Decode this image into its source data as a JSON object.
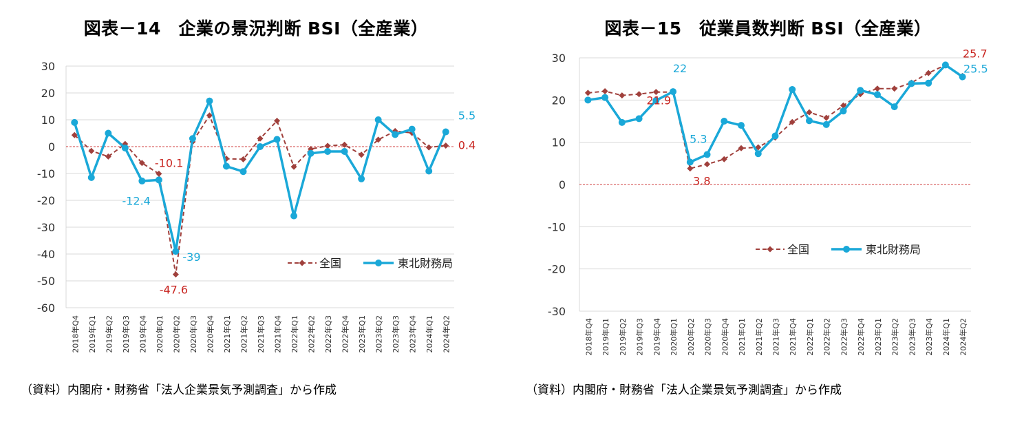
{
  "colors": {
    "zenkoku": "#a0403c",
    "tohoku": "#1aa8d8",
    "zero_line": "#d04040",
    "grid": "#d9d9d9"
  },
  "chart_data": [
    {
      "type": "line",
      "title": "図表－14　企業の景況判断 BSI（全産業）",
      "source": "（資料）内閣府・財務省「法人企業景気予測調査」から作成",
      "categories": [
        "2018年Q4",
        "2019年Q1",
        "2019年Q2",
        "2019年Q3",
        "2019年Q4",
        "2020年Q1",
        "2020年Q2",
        "2020年Q3",
        "2020年Q4",
        "2021年Q1",
        "2021年Q2",
        "2021年Q3",
        "2021年Q4",
        "2022年Q1",
        "2022年Q2",
        "2022年Q3",
        "2022年Q4",
        "2023年Q1",
        "2023年Q2",
        "2023年Q3",
        "2023年Q4",
        "2024年Q1",
        "2024年Q2"
      ],
      "ylim": [
        -60,
        30
      ],
      "yticks": [
        30,
        20,
        10,
        0,
        -10,
        -20,
        -30,
        -40,
        -50,
        -60
      ],
      "grid": true,
      "legend_position": "bottom-right",
      "series": [
        {
          "name": "全国",
          "style": "dashed-diamond",
          "values": [
            4.3,
            -1.6,
            -3.7,
            1.0,
            -6.1,
            -10.1,
            -47.6,
            1.8,
            11.6,
            -4.5,
            -4.7,
            3.0,
            9.6,
            -7.5,
            -0.9,
            0.3,
            0.7,
            -3.0,
            2.6,
            5.8,
            5.1,
            -0.3,
            0.4
          ]
        },
        {
          "name": "東北財務局",
          "style": "solid-circle",
          "values": [
            9.0,
            -11.5,
            5.0,
            -0.5,
            -12.8,
            -12.4,
            -39.0,
            3.0,
            17.0,
            -7.3,
            -9.3,
            0.0,
            2.7,
            -25.8,
            -2.5,
            -1.8,
            -1.8,
            -12.0,
            10.0,
            4.5,
            6.5,
            -9.1,
            5.5
          ]
        }
      ],
      "annotations": [
        {
          "text": "-10.1",
          "series": "全国",
          "index": 5
        },
        {
          "text": "-12.4",
          "series": "東北財務局",
          "index": 5
        },
        {
          "text": "-39",
          "series": "東北財務局",
          "index": 6
        },
        {
          "text": "-47.6",
          "series": "全国",
          "index": 6
        },
        {
          "text": "5.5",
          "series": "東北財務局",
          "index": 22
        },
        {
          "text": "0.4",
          "series": "全国",
          "index": 22
        }
      ]
    },
    {
      "type": "line",
      "title": "図表－15　従業員数判断 BSI（全産業）",
      "source": "（資料）内閣府・財務省「法人企業景気予測調査」から作成",
      "categories": [
        "2018年Q4",
        "2019年Q1",
        "2019年Q2",
        "2019年Q3",
        "2019年Q4",
        "2020年Q1",
        "2020年Q2",
        "2020年Q3",
        "2020年Q4",
        "2021年Q1",
        "2021年Q2",
        "2021年Q3",
        "2021年Q4",
        "2022年Q1",
        "2022年Q2",
        "2022年Q3",
        "2022年Q4",
        "2023年Q1",
        "2023年Q2",
        "2023年Q3",
        "2023年Q4",
        "2024年Q1",
        "2024年Q2"
      ],
      "ylim": [
        -30,
        30
      ],
      "yticks": [
        30,
        20,
        10,
        0,
        -10,
        -20,
        -30
      ],
      "grid": true,
      "legend_position": "center",
      "series": [
        {
          "name": "全国",
          "style": "dashed-diamond",
          "values": [
            21.7,
            22.1,
            21.1,
            21.4,
            21.9,
            21.9,
            3.8,
            4.8,
            6.0,
            8.6,
            8.8,
            11.1,
            14.8,
            17.1,
            15.8,
            18.7,
            21.4,
            22.7,
            22.7,
            24.1,
            26.4,
            28.3,
            25.7
          ]
        },
        {
          "name": "東北財務局",
          "style": "solid-circle",
          "values": [
            20.0,
            20.6,
            14.7,
            15.6,
            19.9,
            22.0,
            5.3,
            7.1,
            15.0,
            14.0,
            7.3,
            11.5,
            22.5,
            15.1,
            14.2,
            17.4,
            22.3,
            21.3,
            18.4,
            23.9,
            24.0,
            28.3,
            25.5
          ]
        }
      ],
      "annotations": [
        {
          "text": "22",
          "series": "東北財務局",
          "index": 5
        },
        {
          "text": "21.9",
          "series": "全国",
          "index": 4
        },
        {
          "text": "5.3",
          "series": "東北財務局",
          "index": 6
        },
        {
          "text": "3.8",
          "series": "全国",
          "index": 6
        },
        {
          "text": "25.7",
          "series": "全国",
          "index": 22
        },
        {
          "text": "25.5",
          "series": "東北財務局",
          "index": 22
        }
      ]
    }
  ]
}
